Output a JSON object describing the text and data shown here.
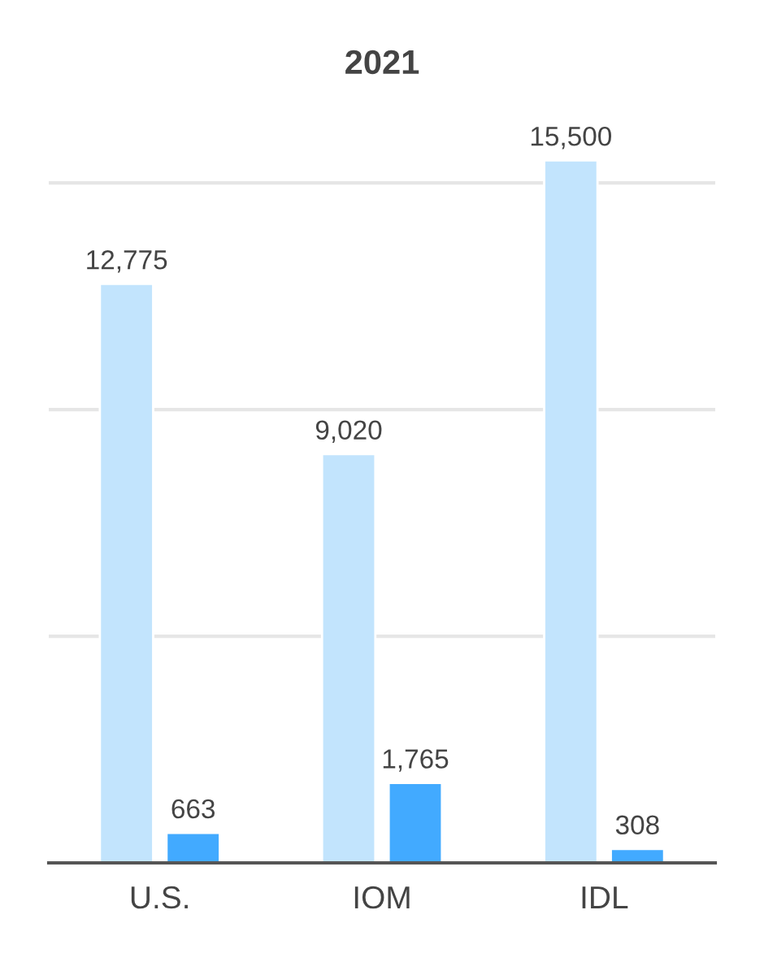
{
  "chart_data": {
    "type": "bar",
    "title": "2021",
    "categories": [
      "U.S.",
      "IOM",
      "IDL"
    ],
    "series": [
      {
        "color": "#c2e4fd",
        "values": [
          12775,
          9020,
          15500
        ],
        "value_labels": [
          "12,775",
          "9,020",
          "15,500"
        ]
      },
      {
        "color": "#42aaff",
        "values": [
          663,
          1765,
          308
        ],
        "value_labels": [
          "663",
          "1,765",
          "308"
        ]
      }
    ],
    "yticks": [
      {
        "value": 0,
        "label": null
      },
      {
        "value": 5000,
        "label": null
      },
      {
        "value": 10000,
        "label": null
      },
      {
        "value": 15000,
        "label": null
      }
    ],
    "grid": "y",
    "tick_labels": "x"
  }
}
